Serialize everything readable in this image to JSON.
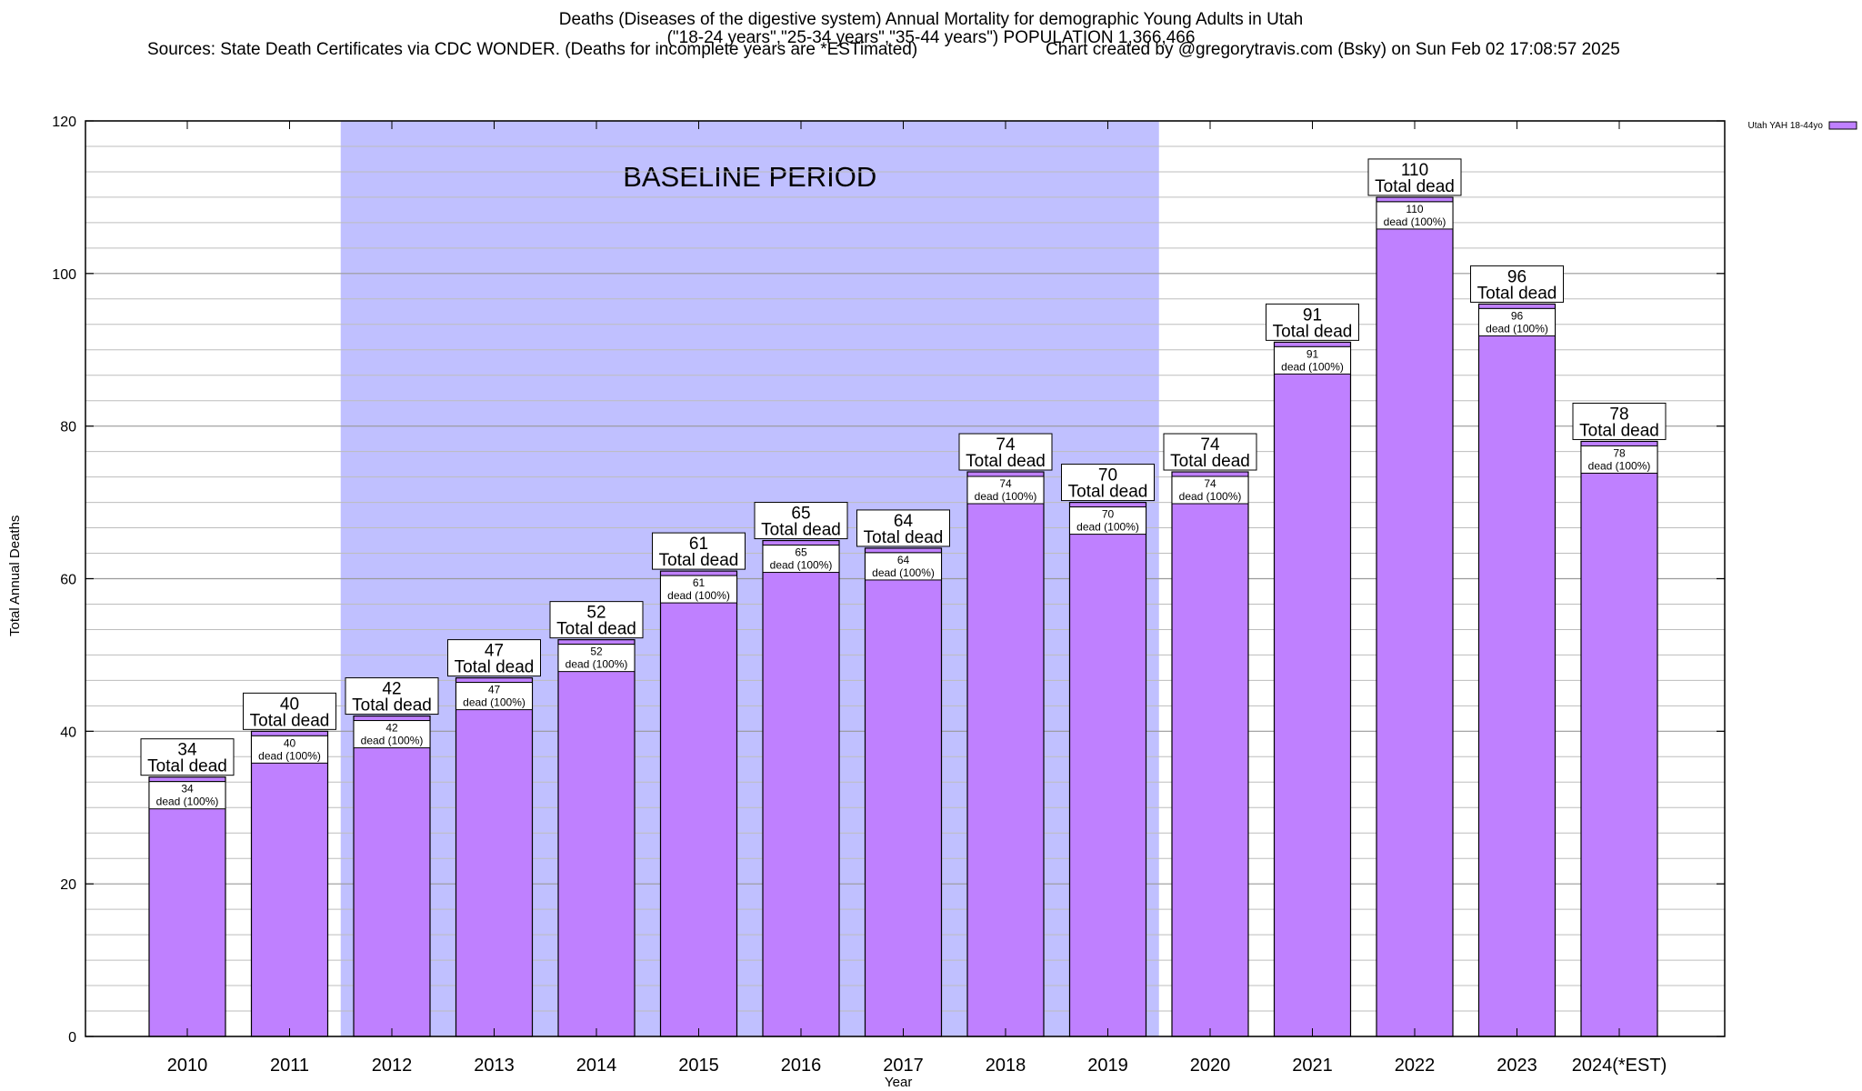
{
  "chart_data": {
    "type": "bar",
    "title_lines": [
      "Deaths (Diseases of the digestive system) Annual Mortality for demographic Young Adults in Utah",
      "(\"18-24 years\",\"25-34 years\",\"35-44 years\") POPULATION 1,366,466"
    ],
    "source": "Sources: State Death Certificates via CDC WONDER. (Deaths for incomplete years are *ESTimated)",
    "credit": "Chart created by @gregorytravis.com (Bsky) on Sun Feb 02 17:08:57 2025",
    "xlabel": "Year",
    "ylabel": "Total Annual Deaths",
    "ylim": [
      0,
      120
    ],
    "yticks": [
      0,
      20,
      40,
      60,
      80,
      100,
      120
    ],
    "grid": true,
    "legend": {
      "placement": "top-right",
      "label": "Utah YAH 18-44yo"
    },
    "categories": [
      "2010",
      "2011",
      "2012",
      "2013",
      "2014",
      "2015",
      "2016",
      "2017",
      "2018",
      "2019",
      "2020",
      "2021",
      "2022",
      "2023",
      "2024(*EST)"
    ],
    "series": [
      {
        "name": "Utah YAH 18-44yo",
        "values": [
          34,
          40,
          42,
          47,
          52,
          61,
          65,
          64,
          74,
          70,
          74,
          91,
          110,
          96,
          78
        ]
      }
    ],
    "top_label_suffix": "Total dead",
    "inner_label_suffix": "dead (100%)",
    "baseline": {
      "label": "BASELINE PERIOD",
      "from": "2012",
      "to": "2019"
    },
    "colors": {
      "bar_fill": "#bf80ff",
      "bar_cap": "#a070e0",
      "baseline_fill": "#c0c0ff",
      "grid": "#bdbdbd",
      "axis": "#000000"
    }
  }
}
